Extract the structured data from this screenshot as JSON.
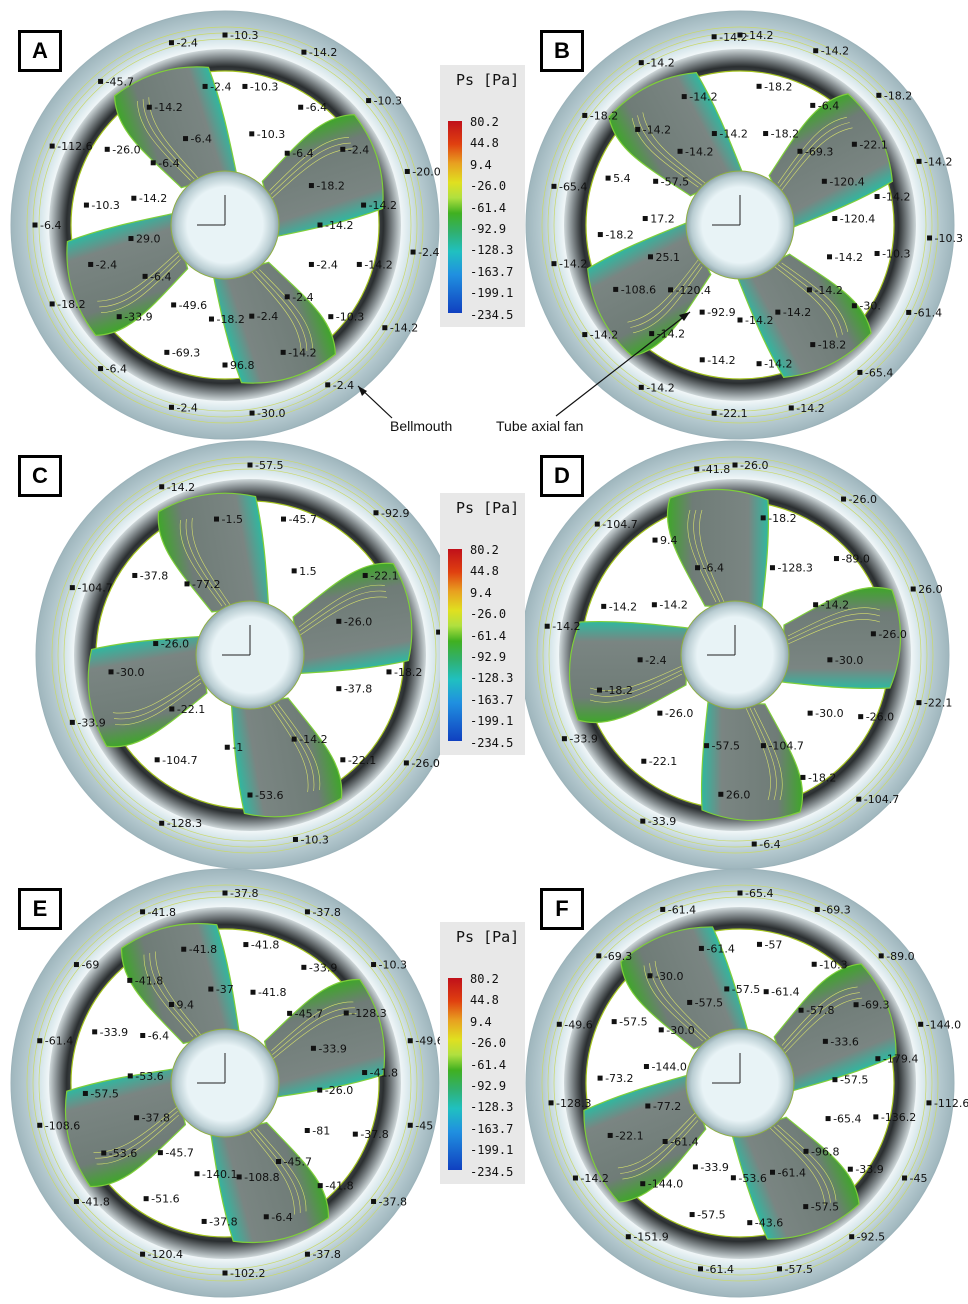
{
  "legend": {
    "title": "Ps [Pa]",
    "ticks": [
      "80.2",
      "44.8",
      "9.4",
      "-26.0",
      "-61.4",
      "-92.9",
      "-128.3",
      "-163.7",
      "-199.1",
      "-234.5"
    ]
  },
  "annotations": {
    "bellmouth": "Bellmouth",
    "fan": "Tube axial fan"
  },
  "panels": [
    {
      "id": "A",
      "labels": [
        "-10.3",
        "-10.3",
        "-10.3",
        "-14.2",
        "-6.4",
        "-6.4",
        "-10.3",
        "-2.4",
        "-18.2",
        "-20.0",
        "-14.2",
        "-14.2",
        "-2.4",
        "-14.2",
        "-2.4",
        "-14.2",
        "-10.3",
        "-2.4",
        "-2.4",
        "-14.2",
        "-2.4",
        "-30.0",
        "96.8",
        "-18.2",
        "-2.4",
        "-69.3",
        "-49.6",
        "-6.4",
        "-33.9",
        "-6.4",
        "-18.2",
        "-2.4",
        "29.0",
        "-6.4",
        "-10.3",
        "-14.2",
        "-112.6",
        "-26.0",
        "-6.4",
        "-45.7",
        "-14.2",
        "-6.4",
        "-2.4",
        "-2.4"
      ]
    },
    {
      "id": "B",
      "labels": [
        "-14.2",
        "-18.2",
        "-18.2",
        "-14.2",
        "-6.4",
        "-69.3",
        "-18.2",
        "-22.1",
        "-120.4",
        "-14.2",
        "-14.2",
        "-120.4",
        "-10.3",
        "-10.3",
        "-14.2",
        "-61.4",
        "-30.",
        "-14.2",
        "-65.4",
        "-18.2",
        "-14.2",
        "-14.2",
        "-14.2",
        "-14.2",
        "-22.1",
        "-14.2",
        "-92.9",
        "-14.2",
        "-14.2",
        "-120.4",
        "-14.2",
        "-108.6",
        "25.1",
        "-14.2",
        "-18.2",
        "17.2",
        "-65.4",
        "5.4",
        "-57.5",
        "-18.2",
        "-14.2",
        "-14.2",
        "-14.2",
        "-14.2",
        "-14.2",
        "-14.2"
      ]
    },
    {
      "id": "C",
      "labels": [
        "-57.5",
        "-45.7",
        "1.5",
        "-92.9",
        "-22.1",
        "-26.0",
        "-81.1",
        "-18.2",
        "-37.8",
        "-26.0",
        "-22.1",
        "-14.2",
        "-10.3",
        "-53.6",
        "-1",
        "-128.3",
        "-104.7",
        "-22.1",
        "-33.9",
        "-30.0",
        "-26.0",
        "-104.7",
        "-37.8",
        "-77.2",
        "-14.2",
        "-1.5"
      ]
    },
    {
      "id": "D",
      "labels": [
        "-26.0",
        "-18.2",
        "-128.3",
        "-26.0",
        "-89.0",
        "-14.2",
        "26.0",
        "-26.0",
        "-30.0",
        "-22.1",
        "-26.0",
        "-30.0",
        "-104.7",
        "-18.2",
        "-104.7",
        "-6.4",
        "26.0",
        "-57.5",
        "-33.9",
        "-22.1",
        "-26.0",
        "-33.9",
        "-18.2",
        "-2.4",
        "-14.2",
        "-14.2",
        "-14.2",
        "-104.7",
        "9.4",
        "-6.4",
        "-41.8"
      ]
    },
    {
      "id": "E",
      "labels": [
        "-37.8",
        "-41.8",
        "-41.8",
        "-37.8",
        "-33.9",
        "-45.7",
        "-10.3",
        "-128.3",
        "-33.9",
        "-49.6",
        "-41.8",
        "-26.0",
        "-45",
        "-37.8",
        "-81",
        "-37.8",
        "-41.8",
        "-45.7",
        "-37.8",
        "-6.4",
        "-108.8",
        "-102.2",
        "-37.8",
        "-140.1",
        "-120.4",
        "-51.6",
        "-45.7",
        "-41.8",
        "-53.6",
        "-37.8",
        "-108.6",
        "-57.5",
        "-53.6",
        "-61.4",
        "-33.9",
        "-6.4",
        "-69",
        "-41.8",
        "9.4",
        "-41.8",
        "-41.8",
        "-37"
      ]
    },
    {
      "id": "F",
      "labels": [
        "-65.4",
        "-57",
        "-61.4",
        "-69.3",
        "-10.3",
        "-57.8",
        "-89.0",
        "-69.3",
        "-33.6",
        "-144.0",
        "-179.4",
        "-57.5",
        "-112.6",
        "-136.2",
        "-65.4",
        "-45",
        "-33.9",
        "-96.8",
        "-92.5",
        "-57.5",
        "-61.4",
        "-57.5",
        "-43.6",
        "-53.6",
        "-61.4",
        "-57.5",
        "-33.9",
        "-151.9",
        "-144.0",
        "-61.4",
        "-14.2",
        "-22.1",
        "-77.2",
        "-128.3",
        "-73.2",
        "-144.0",
        "-49.6",
        "-57.5",
        "-30.0",
        "-69.3",
        "-30.0",
        "-57.5",
        "-61.4",
        "-61.4",
        "-57.5"
      ]
    }
  ]
}
